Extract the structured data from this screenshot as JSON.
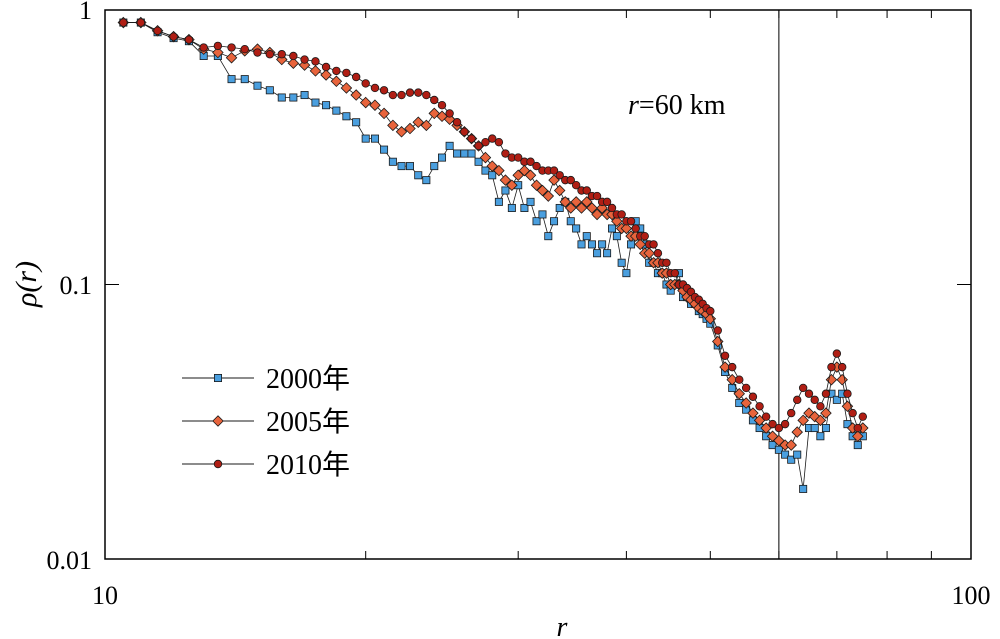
{
  "chart_data": {
    "type": "scatter",
    "title": "",
    "xlabel": "r",
    "ylabel": "ρ(r)",
    "x_scale": "log",
    "y_scale": "log",
    "xlim": [
      10,
      100
    ],
    "ylim": [
      0.01,
      1
    ],
    "x_tick_labels": [
      "10",
      "100"
    ],
    "y_tick_labels": [
      "1",
      "0.1",
      "0.01"
    ],
    "grid": false,
    "legend_position": "lower-left",
    "annotation": {
      "text_prefix": "r",
      "text_suffix": "=60 km",
      "x": 60
    },
    "series": [
      {
        "name": "2000年",
        "marker": "square",
        "color": "#4a9fdf",
        "x": [
          10.5,
          11,
          11.5,
          12,
          12.5,
          13,
          13.5,
          14,
          14.5,
          15,
          15.5,
          16,
          16.5,
          17,
          17.5,
          18,
          18.5,
          19,
          19.5,
          20,
          20.5,
          21,
          21.5,
          22,
          22.5,
          23,
          23.5,
          24,
          24.5,
          25,
          25.5,
          26,
          26.5,
          27,
          27.5,
          28,
          28.5,
          29,
          29.5,
          30,
          30.5,
          31,
          31.5,
          32,
          32.5,
          33,
          33.5,
          34,
          34.5,
          35,
          35.5,
          36,
          36.5,
          37,
          37.5,
          38,
          38.5,
          39,
          39.5,
          40,
          40.5,
          41,
          41.5,
          42,
          42.5,
          43,
          43.5,
          44,
          44.5,
          45,
          45.5,
          46,
          46.5,
          47,
          47.5,
          48,
          48.5,
          49,
          49.5,
          50,
          51,
          52,
          53,
          54,
          55,
          56,
          57,
          58,
          59,
          60,
          61,
          62,
          63,
          64,
          65,
          66,
          67,
          68,
          69,
          70,
          71,
          72,
          73,
          74,
          75
        ],
        "y": [
          0.9,
          0.9,
          0.83,
          0.79,
          0.77,
          0.68,
          0.68,
          0.56,
          0.56,
          0.53,
          0.51,
          0.48,
          0.48,
          0.49,
          0.46,
          0.45,
          0.43,
          0.41,
          0.39,
          0.34,
          0.34,
          0.31,
          0.28,
          0.27,
          0.27,
          0.25,
          0.24,
          0.27,
          0.29,
          0.32,
          0.3,
          0.3,
          0.3,
          0.28,
          0.26,
          0.25,
          0.2,
          0.22,
          0.19,
          0.23,
          0.19,
          0.2,
          0.17,
          0.18,
          0.15,
          0.17,
          0.19,
          0.2,
          0.17,
          0.16,
          0.14,
          0.15,
          0.14,
          0.13,
          0.14,
          0.13,
          0.16,
          0.15,
          0.12,
          0.11,
          0.14,
          0.17,
          0.16,
          0.14,
          0.12,
          0.12,
          0.11,
          0.11,
          0.1,
          0.095,
          0.1,
          0.11,
          0.09,
          0.09,
          0.085,
          0.085,
          0.08,
          0.078,
          0.075,
          0.072,
          0.06,
          0.048,
          0.042,
          0.037,
          0.035,
          0.032,
          0.03,
          0.028,
          0.026,
          0.025,
          0.024,
          0.023,
          0.024,
          0.018,
          0.03,
          0.03,
          0.028,
          0.03,
          0.04,
          0.038,
          0.04,
          0.031,
          0.028,
          0.026,
          0.028
        ]
      },
      {
        "name": "2005年",
        "marker": "diamond",
        "color": "#e8643c",
        "x": [
          10.5,
          11,
          11.5,
          12,
          12.5,
          13,
          13.5,
          14,
          14.5,
          15,
          15.5,
          16,
          16.5,
          17,
          17.5,
          18,
          18.5,
          19,
          19.5,
          20,
          20.5,
          21,
          21.5,
          22,
          22.5,
          23,
          23.5,
          24,
          24.5,
          25,
          25.5,
          26,
          26.5,
          27,
          27.5,
          28,
          28.5,
          29,
          29.5,
          30,
          30.5,
          31,
          31.5,
          32,
          32.5,
          33,
          33.5,
          34,
          34.5,
          35,
          35.5,
          36,
          36.5,
          37,
          37.5,
          38,
          38.5,
          39,
          39.5,
          40,
          40.5,
          41,
          41.5,
          42,
          42.5,
          43,
          43.5,
          44,
          44.5,
          45,
          45.5,
          46,
          46.5,
          47,
          47.5,
          48,
          48.5,
          49,
          49.5,
          50,
          51,
          52,
          53,
          54,
          55,
          56,
          57,
          58,
          59,
          60,
          61,
          62,
          63,
          64,
          65,
          66,
          67,
          68,
          69,
          70,
          71,
          72,
          73,
          74,
          75
        ],
        "y": [
          0.9,
          0.9,
          0.84,
          0.8,
          0.78,
          0.72,
          0.7,
          0.67,
          0.71,
          0.72,
          0.7,
          0.66,
          0.64,
          0.63,
          0.6,
          0.58,
          0.55,
          0.52,
          0.49,
          0.46,
          0.45,
          0.42,
          0.38,
          0.36,
          0.37,
          0.39,
          0.38,
          0.42,
          0.41,
          0.4,
          0.38,
          0.36,
          0.34,
          0.32,
          0.29,
          0.27,
          0.26,
          0.24,
          0.23,
          0.25,
          0.26,
          0.25,
          0.23,
          0.22,
          0.21,
          0.24,
          0.22,
          0.2,
          0.19,
          0.2,
          0.19,
          0.2,
          0.19,
          0.18,
          0.19,
          0.18,
          0.18,
          0.17,
          0.16,
          0.16,
          0.15,
          0.15,
          0.14,
          0.13,
          0.13,
          0.12,
          0.12,
          0.11,
          0.11,
          0.1,
          0.1,
          0.1,
          0.095,
          0.09,
          0.088,
          0.085,
          0.082,
          0.08,
          0.078,
          0.075,
          0.062,
          0.05,
          0.045,
          0.04,
          0.037,
          0.034,
          0.032,
          0.03,
          0.028,
          0.027,
          0.026,
          0.026,
          0.029,
          0.032,
          0.034,
          0.033,
          0.032,
          0.034,
          0.045,
          0.05,
          0.045,
          0.036,
          0.03,
          0.028,
          0.03
        ]
      },
      {
        "name": "2010年",
        "marker": "circle",
        "color": "#b01e14",
        "x": [
          10.5,
          11,
          11.5,
          12,
          12.5,
          13,
          13.5,
          14,
          14.5,
          15,
          15.5,
          16,
          16.5,
          17,
          17.5,
          18,
          18.5,
          19,
          19.5,
          20,
          20.5,
          21,
          21.5,
          22,
          22.5,
          23,
          23.5,
          24,
          24.5,
          25,
          25.5,
          26,
          26.5,
          27,
          27.5,
          28,
          28.5,
          29,
          29.5,
          30,
          30.5,
          31,
          31.5,
          32,
          32.5,
          33,
          33.5,
          34,
          34.5,
          35,
          35.5,
          36,
          36.5,
          37,
          37.5,
          38,
          38.5,
          39,
          39.5,
          40,
          40.5,
          41,
          41.5,
          42,
          42.5,
          43,
          43.5,
          44,
          44.5,
          45,
          45.5,
          46,
          46.5,
          47,
          47.5,
          48,
          48.5,
          49,
          49.5,
          50,
          51,
          52,
          53,
          54,
          55,
          56,
          57,
          58,
          59,
          60,
          61,
          62,
          63,
          64,
          65,
          66,
          67,
          68,
          69,
          70,
          71,
          72,
          73,
          74,
          75
        ],
        "y": [
          0.9,
          0.9,
          0.84,
          0.8,
          0.78,
          0.73,
          0.74,
          0.73,
          0.72,
          0.7,
          0.69,
          0.69,
          0.68,
          0.66,
          0.65,
          0.62,
          0.6,
          0.59,
          0.57,
          0.54,
          0.52,
          0.51,
          0.49,
          0.49,
          0.5,
          0.5,
          0.49,
          0.47,
          0.45,
          0.42,
          0.39,
          0.36,
          0.34,
          0.32,
          0.33,
          0.34,
          0.33,
          0.3,
          0.29,
          0.29,
          0.28,
          0.28,
          0.27,
          0.26,
          0.26,
          0.26,
          0.25,
          0.24,
          0.24,
          0.23,
          0.22,
          0.22,
          0.21,
          0.21,
          0.2,
          0.2,
          0.19,
          0.18,
          0.18,
          0.17,
          0.17,
          0.16,
          0.15,
          0.15,
          0.14,
          0.14,
          0.13,
          0.12,
          0.12,
          0.11,
          0.11,
          0.1,
          0.1,
          0.097,
          0.094,
          0.09,
          0.088,
          0.085,
          0.082,
          0.08,
          0.068,
          0.055,
          0.05,
          0.045,
          0.042,
          0.039,
          0.036,
          0.033,
          0.031,
          0.03,
          0.031,
          0.034,
          0.038,
          0.042,
          0.04,
          0.038,
          0.036,
          0.04,
          0.05,
          0.056,
          0.05,
          0.04,
          0.034,
          0.03,
          0.033
        ]
      }
    ]
  }
}
